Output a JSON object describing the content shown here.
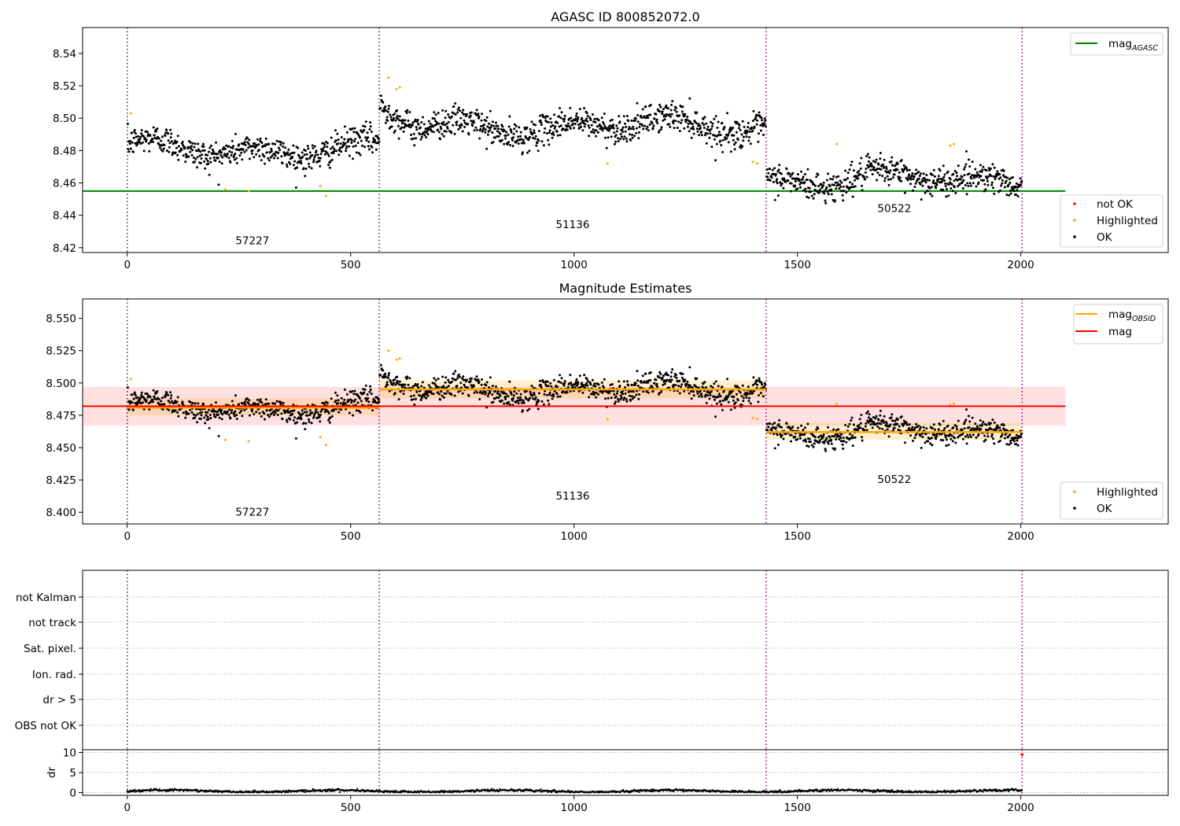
{
  "chart_data": [
    {
      "type": "scatter",
      "title": "AGASC ID 800852072.0",
      "xlim": [
        -100,
        2330
      ],
      "ylim": [
        8.417,
        8.556
      ],
      "x_ticks": [
        0,
        500,
        1000,
        1500,
        2000
      ],
      "y_ticks": [
        8.42,
        8.44,
        8.46,
        8.48,
        8.5,
        8.52,
        8.54
      ],
      "y_tick_labels": [
        "8.42",
        "8.44",
        "8.46",
        "8.48",
        "8.50",
        "8.52",
        "8.54"
      ],
      "obsid_boundaries": [
        0,
        564,
        1430,
        2003
      ],
      "obsid_labels": [
        {
          "text": "57227",
          "x": 280,
          "y": 8.422
        },
        {
          "text": "51136",
          "x": 997,
          "y": 8.432
        },
        {
          "text": "50522",
          "x": 1717,
          "y": 8.442
        }
      ],
      "segments": [
        {
          "x_start": 0,
          "x_end": 564,
          "mean": 8.481,
          "spread": 0.007
        },
        {
          "x_start": 564,
          "x_end": 1430,
          "mean": 8.495,
          "spread": 0.007
        },
        {
          "x_start": 1430,
          "x_end": 2003,
          "mean": 8.462,
          "spread": 0.006
        }
      ],
      "agasc_mag": {
        "value": 8.455,
        "x_start": -100,
        "x_end": 2100,
        "color": "#008000"
      },
      "highlighted_points": [
        {
          "x": 8,
          "y": 8.503
        },
        {
          "x": 220,
          "y": 8.456
        },
        {
          "x": 272,
          "y": 8.455
        },
        {
          "x": 432,
          "y": 8.458
        },
        {
          "x": 445,
          "y": 8.452
        },
        {
          "x": 585,
          "y": 8.525
        },
        {
          "x": 603,
          "y": 8.518
        },
        {
          "x": 610,
          "y": 8.519
        },
        {
          "x": 1075,
          "y": 8.472
        },
        {
          "x": 1400,
          "y": 8.473
        },
        {
          "x": 1410,
          "y": 8.472
        },
        {
          "x": 1588,
          "y": 8.484
        },
        {
          "x": 1842,
          "y": 8.483
        },
        {
          "x": 1850,
          "y": 8.484
        }
      ],
      "legend_top": [
        {
          "label": "mag",
          "subscript": "AGASC",
          "color": "#008000",
          "kind": "line"
        }
      ],
      "legend_bottom": [
        {
          "label": "not OK",
          "color": "#ff0000",
          "kind": "marker"
        },
        {
          "label": "Highlighted",
          "color": "#ffa500",
          "kind": "marker"
        },
        {
          "label": "OK",
          "color": "#000000",
          "kind": "marker"
        }
      ]
    },
    {
      "type": "scatter",
      "title": "Magnitude Estimates",
      "xlim": [
        -100,
        2330
      ],
      "ylim": [
        8.391,
        8.565
      ],
      "x_ticks": [
        0,
        500,
        1000,
        1500,
        2000
      ],
      "y_ticks": [
        8.4,
        8.425,
        8.45,
        8.475,
        8.5,
        8.525,
        8.55
      ],
      "y_tick_labels": [
        "8.400",
        "8.425",
        "8.450",
        "8.475",
        "8.500",
        "8.525",
        "8.550"
      ],
      "obsid_boundaries": [
        0,
        564,
        1430,
        2003
      ],
      "obsid_labels": [
        {
          "text": "57227",
          "x": 280,
          "y": 8.3975
        },
        {
          "text": "51136",
          "x": 997,
          "y": 8.41
        },
        {
          "text": "50522",
          "x": 1717,
          "y": 8.4225
        }
      ],
      "mag_line": {
        "value": 8.482,
        "band": [
          8.467,
          8.497
        ],
        "x_start": -100,
        "x_end": 2100,
        "color": "#ff0000"
      },
      "mag_obsid": [
        {
          "x_start": 0,
          "x_end": 564,
          "value": 8.481,
          "band": [
            8.475,
            8.488
          ]
        },
        {
          "x_start": 564,
          "x_end": 1430,
          "value": 8.495,
          "band": [
            8.488,
            8.502
          ]
        },
        {
          "x_start": 1430,
          "x_end": 2003,
          "value": 8.462,
          "band": [
            8.456,
            8.469
          ]
        }
      ],
      "highlighted_points": [
        {
          "x": 8,
          "y": 8.503
        },
        {
          "x": 220,
          "y": 8.456
        },
        {
          "x": 272,
          "y": 8.455
        },
        {
          "x": 432,
          "y": 8.458
        },
        {
          "x": 445,
          "y": 8.452
        },
        {
          "x": 585,
          "y": 8.525
        },
        {
          "x": 603,
          "y": 8.518
        },
        {
          "x": 610,
          "y": 8.519
        },
        {
          "x": 1075,
          "y": 8.472
        },
        {
          "x": 1400,
          "y": 8.473
        },
        {
          "x": 1410,
          "y": 8.472
        },
        {
          "x": 1588,
          "y": 8.484
        },
        {
          "x": 1842,
          "y": 8.483
        },
        {
          "x": 1850,
          "y": 8.484
        }
      ],
      "legend_top": [
        {
          "label": "mag",
          "subscript": "OBSID",
          "color": "#ffa500",
          "kind": "line"
        },
        {
          "label": "mag",
          "subscript": "",
          "color": "#ff0000",
          "kind": "line"
        }
      ],
      "legend_bottom": [
        {
          "label": "Highlighted",
          "color": "#ffa500",
          "kind": "marker"
        },
        {
          "label": "OK",
          "color": "#000000",
          "kind": "marker"
        }
      ]
    },
    {
      "type": "scatter",
      "xlim": [
        -100,
        2330
      ],
      "category_labels": [
        "not Kalman",
        "not track",
        "Sat. pixel.",
        "Ion. rad.",
        "dr > 5",
        "OBS not OK"
      ],
      "obsid_boundaries": [
        0,
        564,
        1430,
        2003
      ]
    },
    {
      "type": "scatter",
      "ylabel": "dr",
      "xlim": [
        -100,
        2330
      ],
      "ylim": [
        -0.7,
        10.7
      ],
      "x_ticks": [
        0,
        500,
        1000,
        1500,
        2000
      ],
      "y_ticks": [
        0,
        5,
        10
      ],
      "y_tick_labels": [
        "0",
        "5",
        "10"
      ],
      "obsid_boundaries": [
        0,
        564,
        1430,
        2003
      ],
      "outlier_point": {
        "x": 2003,
        "y": 9.5,
        "color": "#ff0000"
      }
    }
  ],
  "colors": {
    "ok": "#000000",
    "highlighted": "#ffa500",
    "not_ok": "#ff0000",
    "boundary": "#800080",
    "agasc": "#008000",
    "mag": "#ff0000",
    "mag_obsid": "#ffa500",
    "grid": "#b0b0b0"
  }
}
